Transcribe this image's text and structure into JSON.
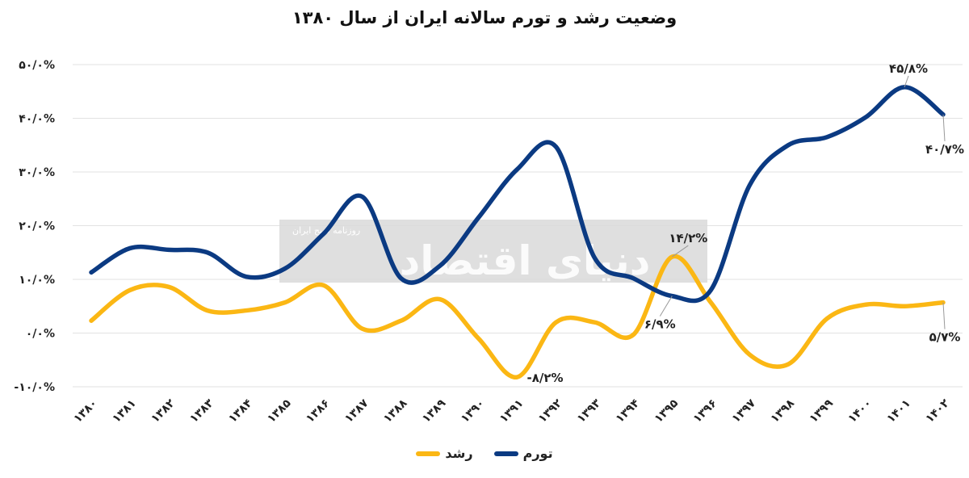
{
  "chart_data": {
    "type": "line",
    "title": "وضعیت رشد و تورم سالانه ایران از سال ۱۳۸۰",
    "xlabel": "",
    "ylabel": "",
    "ylim": [
      -10,
      50
    ],
    "grid": true,
    "legend_position": "bottom",
    "y_ticks": [
      {
        "value": 50,
        "label": "۵۰/۰%"
      },
      {
        "value": 40,
        "label": "۴۰/۰%"
      },
      {
        "value": 30,
        "label": "۳۰/۰%"
      },
      {
        "value": 20,
        "label": "۲۰/۰%"
      },
      {
        "value": 10,
        "label": "۱۰/۰%"
      },
      {
        "value": 0,
        "label": "۰/۰%"
      },
      {
        "value": -10,
        "label": "-۱۰/۰%"
      }
    ],
    "categories": [
      "۱۳۸۰",
      "۱۳۸۱",
      "۱۳۸۲",
      "۱۳۸۳",
      "۱۳۸۴",
      "۱۳۸۵",
      "۱۳۸۶",
      "۱۳۸۷",
      "۱۳۸۸",
      "۱۳۸۹",
      "۱۳۹۰",
      "۱۳۹۱",
      "۱۳۹۲",
      "۱۳۹۳",
      "۱۳۹۴",
      "۱۳۹۵",
      "۱۳۹۶",
      "۱۳۹۷",
      "۱۳۹۸",
      "۱۳۹۹",
      "۱۴۰۰",
      "۱۴۰۱",
      "۱۴۰۲"
    ],
    "series": [
      {
        "name": "تورم",
        "color": "#0b3a82",
        "values": [
          11.3,
          15.8,
          15.5,
          15.0,
          10.5,
          12.0,
          18.5,
          25.4,
          10.2,
          12.5,
          21.5,
          30.5,
          34.7,
          14.0,
          10.2,
          6.9,
          8.0,
          27.5,
          35.0,
          36.5,
          40.2,
          45.8,
          40.7
        ]
      },
      {
        "name": "رشد",
        "color": "#fbb714",
        "values": [
          2.3,
          8.0,
          8.6,
          4.2,
          4.2,
          5.7,
          8.9,
          0.8,
          2.3,
          6.3,
          -1.0,
          -8.2,
          2.0,
          2.0,
          -0.3,
          14.2,
          5.7,
          -4.0,
          -5.8,
          2.7,
          5.3,
          5.0,
          5.7
        ]
      }
    ],
    "annotations": [
      {
        "series": 0,
        "index": 21,
        "label": "۴۵/۸%",
        "pos": "above"
      },
      {
        "series": 0,
        "index": 22,
        "label": "۴۰/۷%",
        "pos": "below"
      },
      {
        "series": 0,
        "index": 15,
        "label": "۶/۹%",
        "pos": "below"
      },
      {
        "series": 1,
        "index": 15,
        "label": "۱۴/۲%",
        "pos": "above"
      },
      {
        "series": 1,
        "index": 11,
        "label": "-۸/۲%",
        "pos": "right"
      },
      {
        "series": 1,
        "index": 22,
        "label": "۵/۷%",
        "pos": "below"
      }
    ]
  },
  "watermark": {
    "brand": "دنیای اقتصاد",
    "tagline": "روزنامه صبح ایران"
  }
}
